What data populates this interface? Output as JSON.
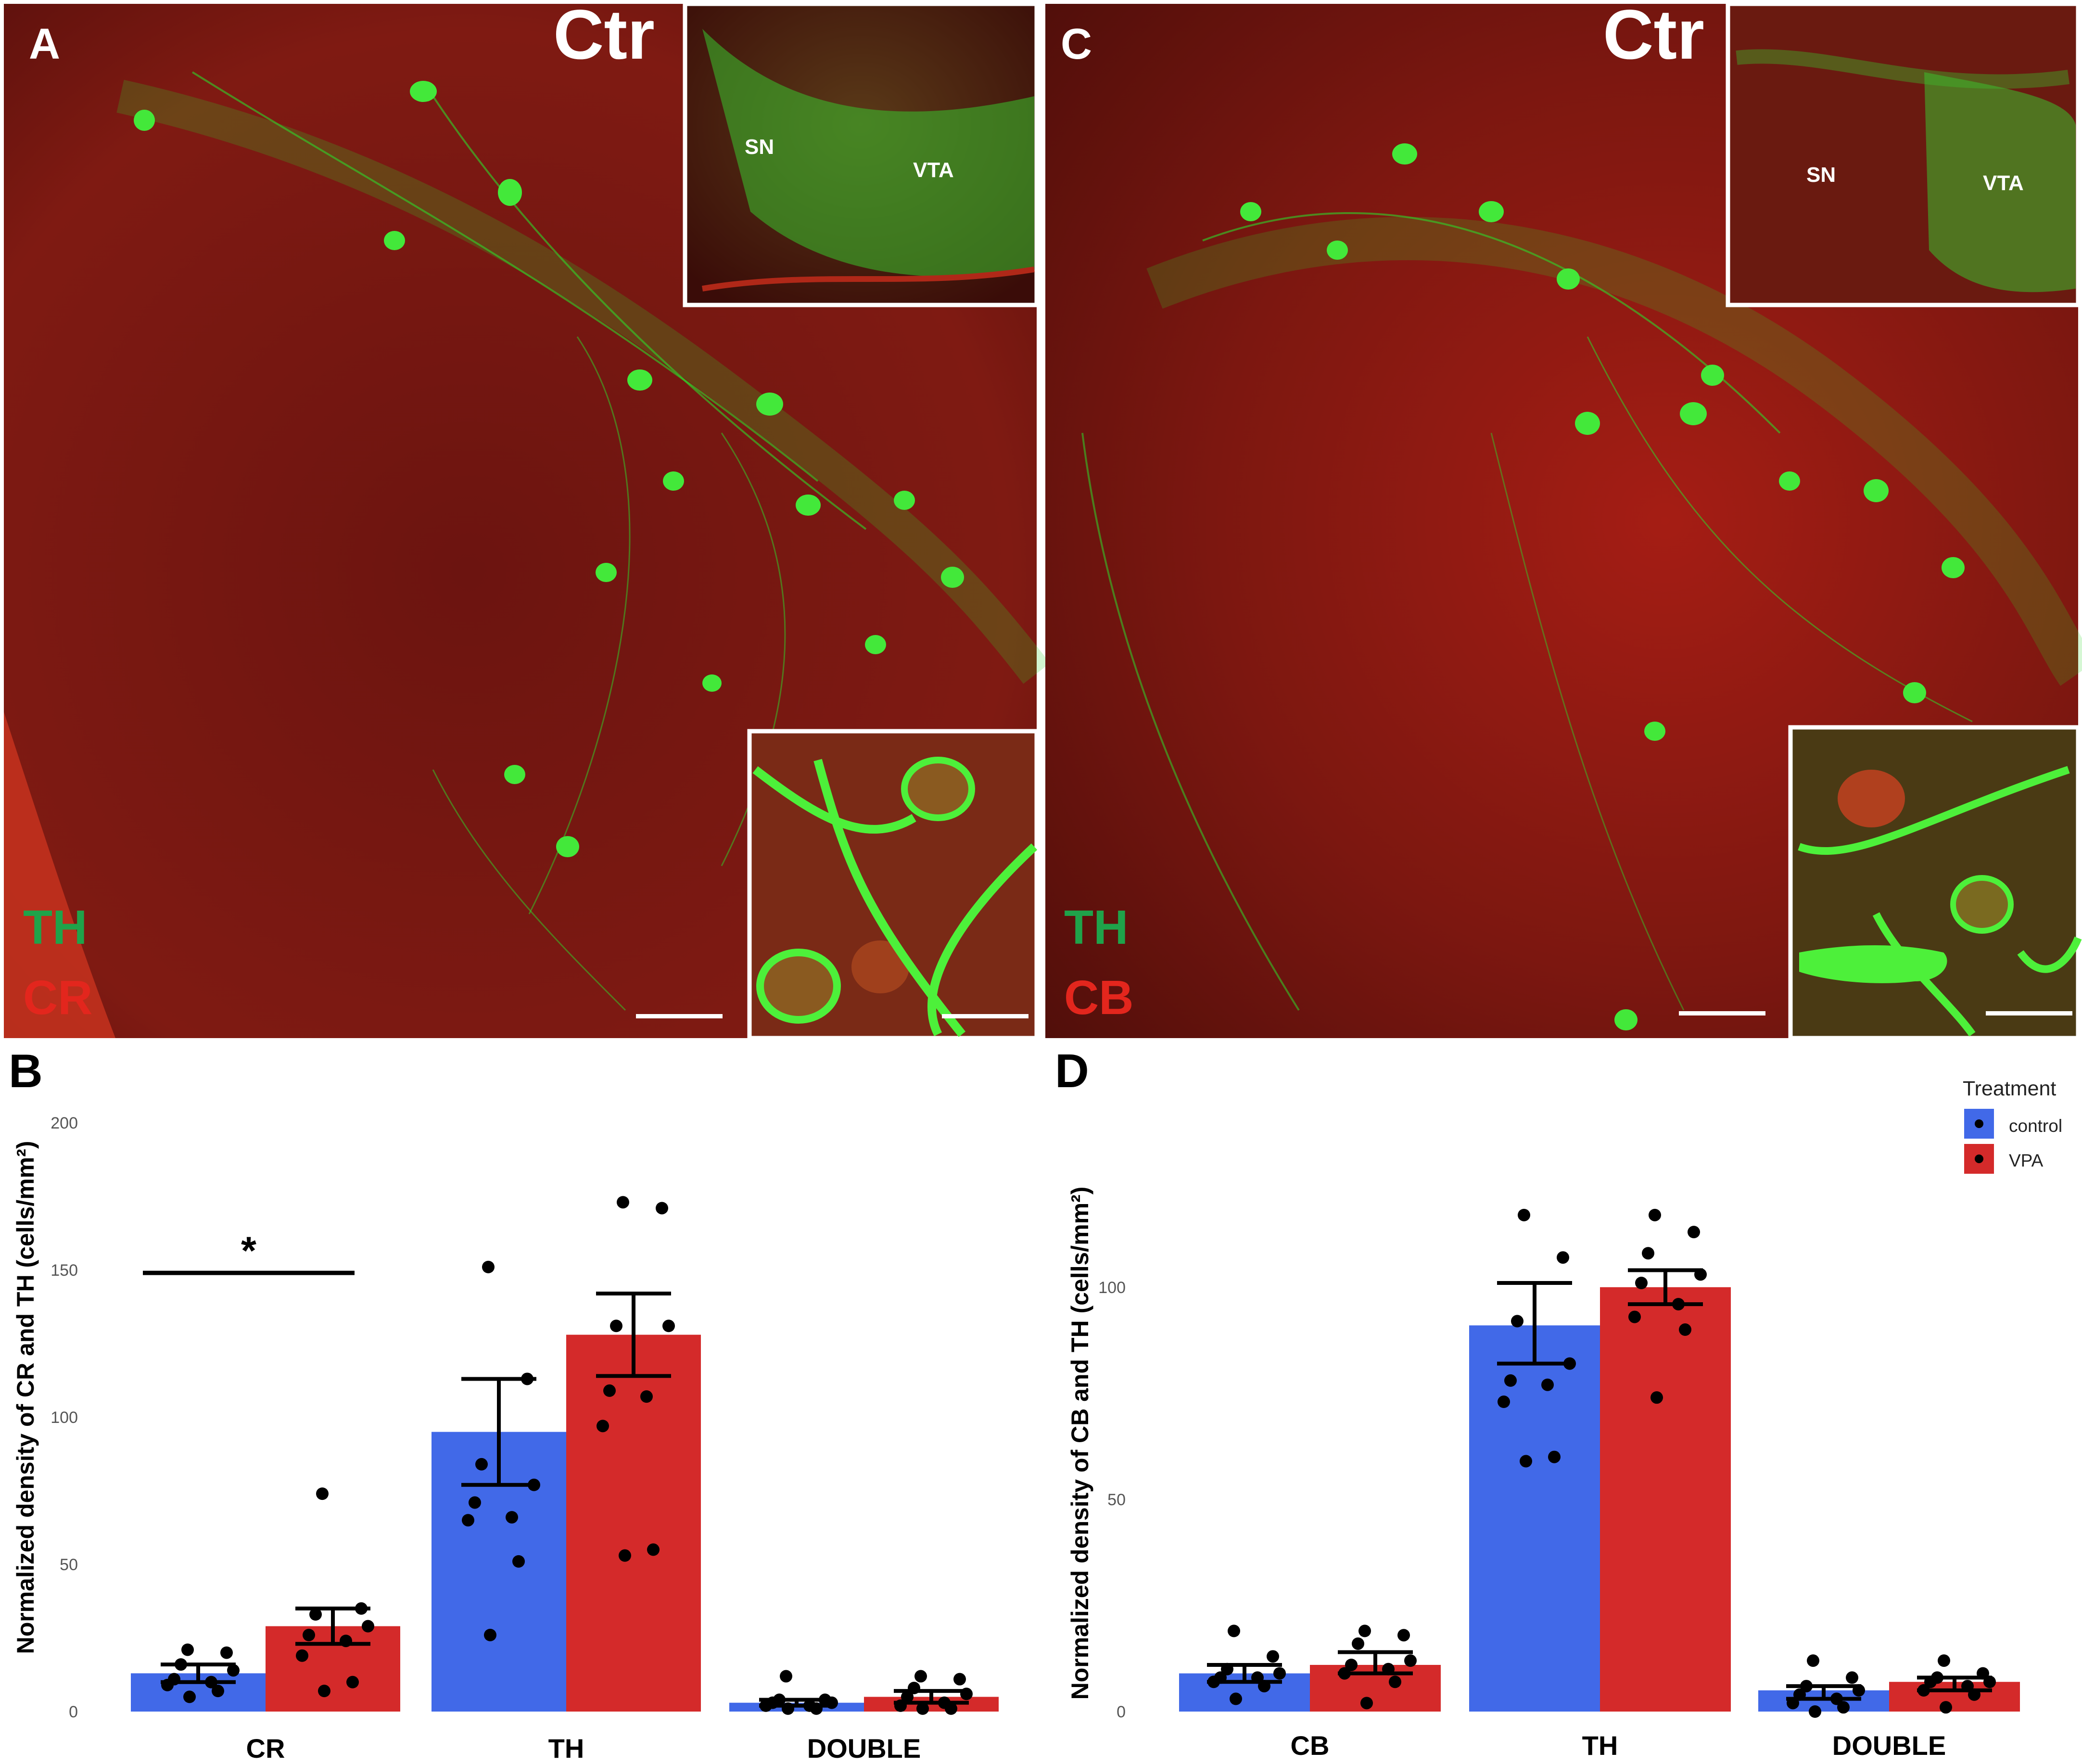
{
  "panels": {
    "A": {
      "letter": "A",
      "condition": "Ctr",
      "inset_labels": [
        "SN",
        "VTA"
      ],
      "marker_green": "TH",
      "marker_red": "CR"
    },
    "C": {
      "letter": "C",
      "condition": "Ctr",
      "inset_labels": [
        "SN",
        "VTA"
      ],
      "marker_green": "TH",
      "marker_red": "CB"
    }
  },
  "colors": {
    "tissue_red": "#7a1510",
    "tissue_red_bright": "#c02418",
    "fiber_green": "#3bea2c",
    "th_label": "#1fa34a",
    "cr_label": "#e3261d",
    "control": "#4169e8",
    "vpa": "#d42a2a"
  },
  "legend": {
    "title": "Treatment",
    "entries": [
      "control",
      "VPA"
    ]
  },
  "chart_data": [
    {
      "panel": "B",
      "type": "bar",
      "title": "",
      "xlabel": "",
      "ylabel": "Normalized density of CR and TH (cells/mm²)",
      "ylim": [
        0,
        200
      ],
      "yticks": [
        0,
        50,
        100,
        150,
        200
      ],
      "categories": [
        "CR",
        "TH",
        "DOUBLE"
      ],
      "series": [
        {
          "name": "control",
          "values": [
            13,
            95,
            3
          ],
          "error": [
            [
              10,
              16
            ],
            [
              77,
              113
            ],
            [
              2,
              4
            ]
          ],
          "points": [
            [
              5,
              7,
              9,
              10,
              11,
              14,
              16,
              20,
              21
            ],
            [
              26,
              51,
              65,
              66,
              71,
              77,
              84,
              113,
              151
            ],
            [
              1,
              1,
              2,
              2,
              3,
              3,
              4,
              4,
              12
            ]
          ]
        },
        {
          "name": "VPA",
          "values": [
            29,
            128,
            5
          ],
          "error": [
            [
              23,
              35
            ],
            [
              114,
              142
            ],
            [
              3,
              7
            ]
          ],
          "points": [
            [
              7,
              10,
              19,
              24,
              26,
              29,
              33,
              35,
              74
            ],
            [
              53,
              55,
              97,
              107,
              109,
              131,
              131,
              171,
              173
            ],
            [
              1,
              1,
              2,
              3,
              5,
              6,
              8,
              11,
              12
            ]
          ]
        }
      ],
      "significance": [
        {
          "category": "CR",
          "label": "*"
        }
      ]
    },
    {
      "panel": "D",
      "type": "bar",
      "title": "",
      "xlabel": "",
      "ylabel": "Normalized density of CB and TH (cells/mm²)",
      "ylim": [
        0,
        137.5
      ],
      "yticks": [
        0,
        50,
        100
      ],
      "categories": [
        "CB",
        "TH",
        "DOUBLE"
      ],
      "series": [
        {
          "name": "control",
          "values": [
            9,
            91,
            5
          ],
          "error": [
            [
              7,
              11
            ],
            [
              82,
              101
            ],
            [
              3,
              6
            ]
          ],
          "points": [
            [
              3,
              6,
              7,
              8,
              8,
              9,
              10,
              13,
              19
            ],
            [
              59,
              60,
              73,
              77,
              78,
              82,
              92,
              107,
              117
            ],
            [
              0,
              1,
              2,
              3,
              4,
              5,
              6,
              8,
              12
            ]
          ]
        },
        {
          "name": "VPA",
          "values": [
            11,
            100,
            7
          ],
          "error": [
            [
              9,
              14
            ],
            [
              96,
              104
            ],
            [
              5,
              8
            ]
          ],
          "points": [
            [
              2,
              7,
              9,
              10,
              11,
              12,
              16,
              18,
              19
            ],
            [
              74,
              90,
              93,
              96,
              101,
              103,
              108,
              113,
              117
            ],
            [
              1,
              4,
              5,
              6,
              7,
              7,
              8,
              9,
              12
            ]
          ]
        }
      ]
    }
  ]
}
